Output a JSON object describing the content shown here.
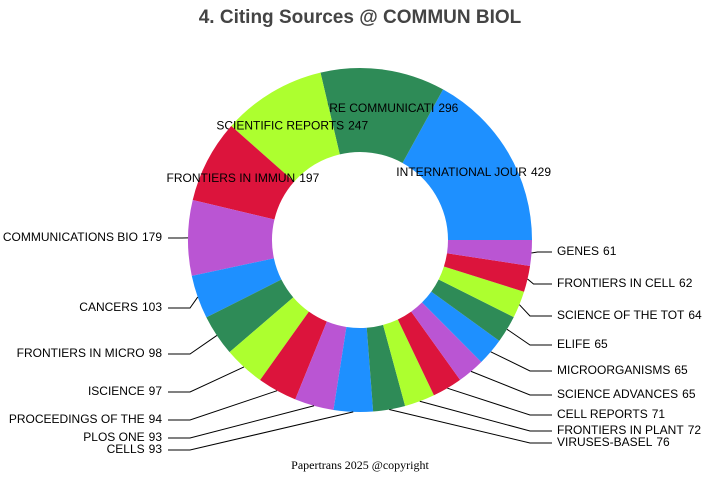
{
  "chart_data": {
    "type": "donut",
    "title": "4. Citing Sources @ COMMUN BIOL",
    "categories": [
      "INTERNATIONAL JOUR",
      "NATURE COMMUNICATI",
      "SCIENTIFIC REPORTS",
      "FRONTIERS IN IMMUN",
      "COMMUNICATIONS BIO",
      "CANCERS",
      "FRONTIERS IN MICRO",
      "ISCIENCE",
      "PROCEEDINGS OF THE",
      "PLOS ONE",
      "CELLS",
      "VIRUSES-BASEL",
      "FRONTIERS IN PLANT",
      "CELL REPORTS",
      "SCIENCE ADVANCES",
      "MICROORGANISMS",
      "ELIFE",
      "SCIENCE OF THE TOT",
      "FRONTIERS IN CELL",
      "GENES"
    ],
    "values": [
      429,
      296,
      247,
      197,
      179,
      103,
      98,
      97,
      94,
      93,
      93,
      76,
      72,
      71,
      65,
      65,
      65,
      64,
      62,
      61
    ],
    "colors": [
      "#1e90ff",
      "#2e8b57",
      "#adff2f",
      "#dc143c",
      "#ba55d3"
    ],
    "footer": "Papertrans 2025 @copyright"
  }
}
